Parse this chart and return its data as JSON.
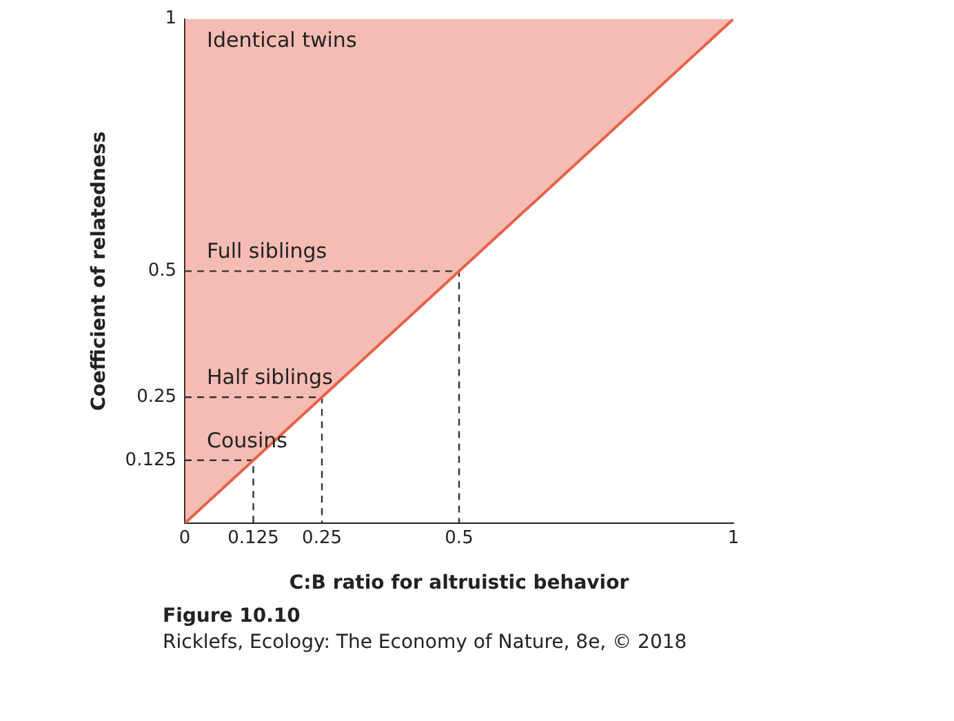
{
  "chart_data": {
    "type": "line",
    "xlabel": "C:B ratio for altruistic behavior",
    "ylabel": "Coefficient of relatedness",
    "xlim": [
      0,
      1
    ],
    "ylim": [
      0,
      1
    ],
    "xticks": [
      0,
      0.125,
      0.25,
      0.5,
      1
    ],
    "yticks": [
      0.125,
      0.25,
      0.5,
      1
    ],
    "series": [
      {
        "color": "#e8604a",
        "x": [
          0,
          1
        ],
        "values": [
          0,
          1
        ],
        "lower": [
          0,
          1
        ],
        "upper": [
          1,
          1
        ]
      },
      {
        "color": "#333333",
        "line_style": "dashed",
        "x": [
          0,
          0.5,
          0.5
        ],
        "values": [
          0.5,
          0.5,
          0
        ]
      },
      {
        "color": "#333333",
        "line_style": "dashed",
        "x": [
          0,
          0.25,
          0.25
        ],
        "values": [
          0.25,
          0.25,
          0
        ]
      },
      {
        "color": "#333333",
        "line_style": "dashed",
        "x": [
          0,
          0.125,
          0.125
        ],
        "values": [
          0.125,
          0.125,
          0
        ]
      }
    ],
    "annotations": [
      {
        "text": "Identical twins",
        "y": 1
      },
      {
        "text": "Full siblings",
        "y": 0.5
      },
      {
        "text": "Half siblings",
        "y": 0.25
      },
      {
        "text": "Cousins",
        "y": 0.125
      },
      "Figure 10.10",
      "Ricklefs, Ecology: The Economy of Nature, 8e, © 2018"
    ]
  }
}
